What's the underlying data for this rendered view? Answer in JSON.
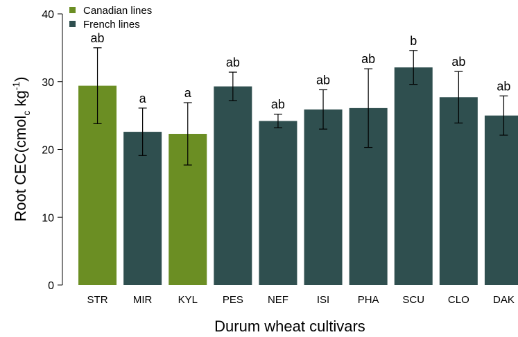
{
  "chart_data": {
    "type": "bar",
    "xlabel": "Durum wheat cultivars",
    "ylabel": {
      "main": "Root  CEC(cmol",
      "sub": "c",
      "mid": "  kg",
      "sup": "-1",
      "end": ")"
    },
    "categories": [
      "STR",
      "MIR",
      "KYL",
      "PES",
      "NEF",
      "ISI",
      "PHA",
      "SCU",
      "CLO",
      "DAK"
    ],
    "series": [
      {
        "name": "Canadian lines",
        "color": "#6b8e23",
        "values": [
          29.4,
          null,
          22.3,
          null,
          null,
          null,
          null,
          null,
          null,
          null
        ],
        "errors": [
          5.6,
          null,
          4.6,
          null,
          null,
          null,
          null,
          null,
          null,
          null
        ]
      },
      {
        "name": "French lines",
        "color": "#2f4f4f",
        "values": [
          null,
          22.6,
          null,
          29.3,
          24.2,
          25.9,
          26.1,
          32.1,
          27.7,
          25.0
        ],
        "errors": [
          null,
          3.5,
          null,
          2.1,
          1.0,
          2.9,
          5.8,
          2.5,
          3.8,
          2.9
        ]
      }
    ],
    "annotations": [
      "ab",
      "a",
      "a",
      "ab",
      "ab",
      "ab",
      "ab",
      "b",
      "ab",
      "ab"
    ],
    "ylim": [
      0,
      40
    ],
    "yticks": [
      0,
      10,
      20,
      30,
      40
    ],
    "legend": "top-left"
  }
}
